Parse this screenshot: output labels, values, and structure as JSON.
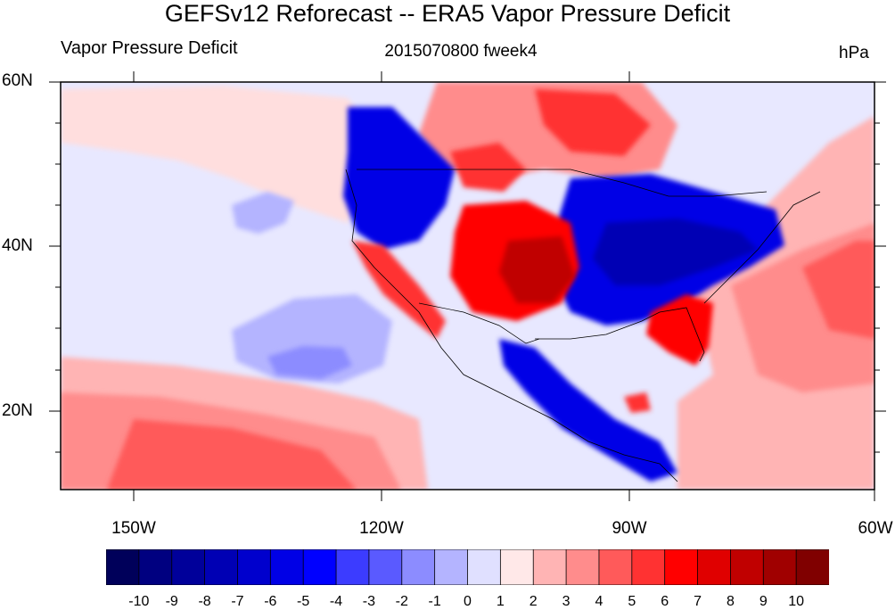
{
  "header": {
    "title": "GEFSv12 Reforecast -- ERA5 Vapor Pressure Deficit",
    "left": "Vapor Pressure Deficit",
    "center": "2015070800 fweek4",
    "right": "hPa"
  },
  "axes": {
    "lat_labels": [
      "60N",
      "40N",
      "20N"
    ],
    "lon_labels": [
      "150W",
      "120W",
      "90W",
      "60W"
    ]
  },
  "colorbar": {
    "labels": [
      "-10",
      "-9",
      "-8",
      "-7",
      "-6",
      "-5",
      "-4",
      "-3",
      "-2",
      "-1",
      "0",
      "1",
      "2",
      "3",
      "4",
      "5",
      "6",
      "7",
      "8",
      "9",
      "10"
    ],
    "colors": [
      "#00005a",
      "#000080",
      "#00009a",
      "#0000b4",
      "#0000cd",
      "#0000e6",
      "#0000ff",
      "#3c3cff",
      "#5a5aff",
      "#8c8cff",
      "#b4b4ff",
      "#e0e0ff",
      "#ffe8e8",
      "#ffb4b4",
      "#ff8c8c",
      "#ff5a5a",
      "#ff3232",
      "#ff0000",
      "#e00000",
      "#c00000",
      "#a00000",
      "#800000"
    ]
  },
  "map": {
    "colors": {
      "ocean_neutral": "#e8e8ff",
      "neg_weak": "#b4b4ff",
      "neg_mid": "#5a5aff",
      "neg_strong": "#0000cd",
      "pos_weak": "#ffdede",
      "pos_light": "#ffb4b4",
      "pos_mid": "#ff5a5a",
      "pos_strong": "#ff0000",
      "pos_deep": "#c00000"
    }
  }
}
